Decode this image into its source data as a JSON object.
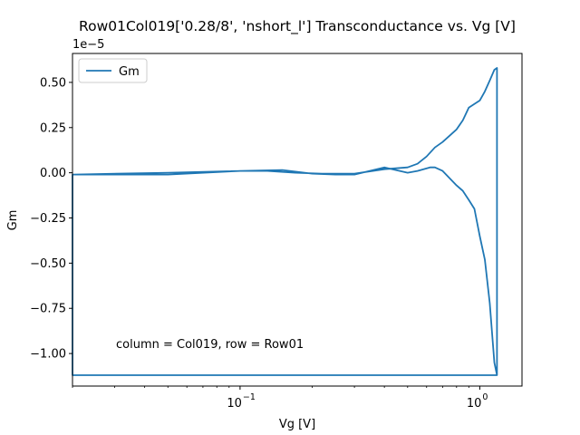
{
  "chart_data": {
    "type": "line",
    "title": "Row01Col019['0.28/8', 'nshort_l'] Transconductance vs. Vg [V]",
    "xlabel": "Vg [V]",
    "ylabel": "Gm",
    "y_multiplier_label": "1e−5",
    "xscale": "log",
    "xlim": [
      0.02,
      1.5
    ],
    "ylim": [
      -1.18,
      0.66
    ],
    "x_ticks": [
      {
        "value": 0.1,
        "base": "10",
        "exp": "−1"
      },
      {
        "value": 1,
        "base": "10",
        "exp": "0"
      }
    ],
    "y_ticks": [
      {
        "value": 0.5,
        "label": "0.50"
      },
      {
        "value": 0.25,
        "label": "0.25"
      },
      {
        "value": 0.0,
        "label": "0.00"
      },
      {
        "value": -0.25,
        "label": "−0.25"
      },
      {
        "value": -0.5,
        "label": "−0.50"
      },
      {
        "value": -0.75,
        "label": "−0.75"
      },
      {
        "value": -1.0,
        "label": "−1.00"
      }
    ],
    "grid": false,
    "legend_position": "upper-left",
    "annotation": "column = Col019, row = Row01",
    "series": [
      {
        "name": "Gm",
        "color": "#1f77b4",
        "x": [
          0.02,
          0.05,
          0.1,
          0.13,
          0.17,
          0.22,
          0.3,
          0.4,
          0.5,
          0.55,
          0.6,
          0.65,
          0.7,
          0.8,
          0.85,
          0.9,
          1.0,
          1.05,
          1.1,
          1.15,
          1.18,
          1.18,
          1.15,
          1.1,
          1.05,
          1.0,
          0.95,
          0.9,
          0.85,
          0.8,
          0.7,
          0.65,
          0.62,
          0.55,
          0.5,
          0.4,
          0.3,
          0.25,
          0.2,
          0.15,
          0.1,
          0.05,
          0.02,
          0.02,
          0.2,
          0.5,
          1.18
        ],
        "y": [
          -0.01,
          0.0,
          0.01,
          0.01,
          0.0,
          -0.005,
          -0.005,
          0.02,
          0.03,
          0.05,
          0.09,
          0.14,
          0.17,
          0.24,
          0.29,
          0.36,
          0.4,
          0.45,
          0.51,
          0.57,
          0.58,
          -1.12,
          -1.05,
          -0.72,
          -0.48,
          -0.35,
          -0.2,
          -0.15,
          -0.1,
          -0.07,
          0.01,
          0.03,
          0.03,
          0.01,
          0.0,
          0.03,
          -0.01,
          -0.01,
          -0.005,
          0.015,
          0.01,
          -0.01,
          -0.01,
          -1.12,
          -1.12,
          -1.12,
          -1.12
        ]
      }
    ]
  }
}
